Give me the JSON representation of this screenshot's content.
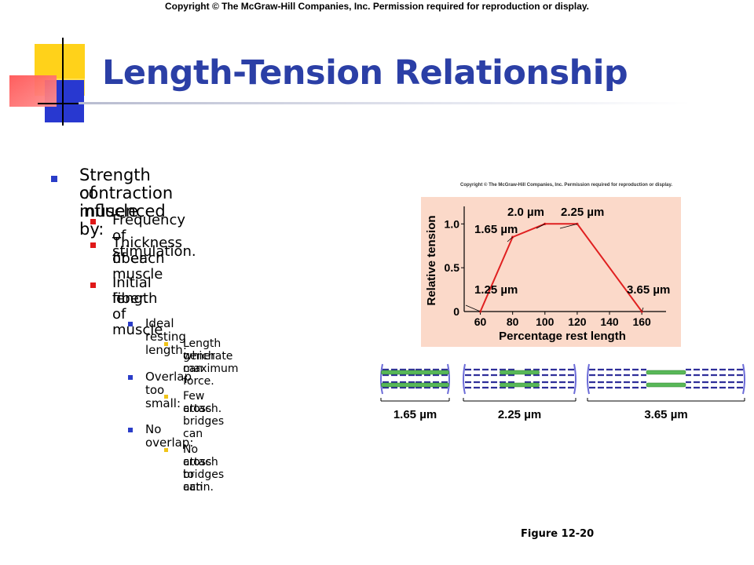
{
  "header": {
    "copyright": "Copyright © The McGraw-Hill Companies, Inc. Permission required for reproduction or display."
  },
  "slide": {
    "title": "Length-Tension Relationship",
    "figure_label": "Figure 12-20",
    "bullets": {
      "b1_line1": "Strength of muscle",
      "b1_line2": "contraction influenced by:",
      "b2_line1": "Frequency of stimulation.",
      "b3_line1": "Thickness of each muscle",
      "b3_line2": "fiber.",
      "b4_line1": "Initial length of muscle",
      "b4_line2": "fiber.",
      "b5_line1": "Ideal resting length:",
      "b6_line1": "Length which can",
      "b6_line2": "generate maximum force.",
      "b7_line1": "Overlap too small:",
      "b8_line1": "Few cross bridges can",
      "b8_line2": "attach.",
      "b9_line1": "No overlap:",
      "b10_line1": "No cross bridges can",
      "b10_line2": "attach to actin."
    }
  },
  "figure": {
    "copyright": "Copyright © The McGraw-Hill Companies, Inc. Permission required for reproduction or display.",
    "sarcomeres": [
      {
        "label": "1.65 µm"
      },
      {
        "label": "2.25 µm"
      },
      {
        "label": "3.65 µm"
      }
    ]
  },
  "chart_data": {
    "type": "line",
    "xlabel": "Percentage rest length",
    "ylabel": "Relative tension",
    "x_ticks": [
      "60",
      "80",
      "100",
      "120",
      "140",
      "160"
    ],
    "y_ticks": [
      "0",
      "0.5",
      "1.0"
    ],
    "xlim": [
      50,
      175
    ],
    "ylim": [
      0,
      1.2
    ],
    "series": [
      {
        "x": [
          60,
          80,
          100,
          120,
          160
        ],
        "y": [
          0,
          0.85,
          1.0,
          1.0,
          0
        ]
      }
    ],
    "annotations": [
      {
        "text": "1.25 µm",
        "x": 60,
        "y": 0
      },
      {
        "text": "1.65 µm",
        "x": 80,
        "y": 0.85
      },
      {
        "text": "2.0 µm",
        "x": 100,
        "y": 1.0
      },
      {
        "text": "2.25 µm",
        "x": 120,
        "y": 1.0
      },
      {
        "text": "3.65 µm",
        "x": 160,
        "y": 0
      }
    ],
    "colors": {
      "line": "#e02020",
      "background": "#fbd9c9",
      "grid": false
    }
  }
}
